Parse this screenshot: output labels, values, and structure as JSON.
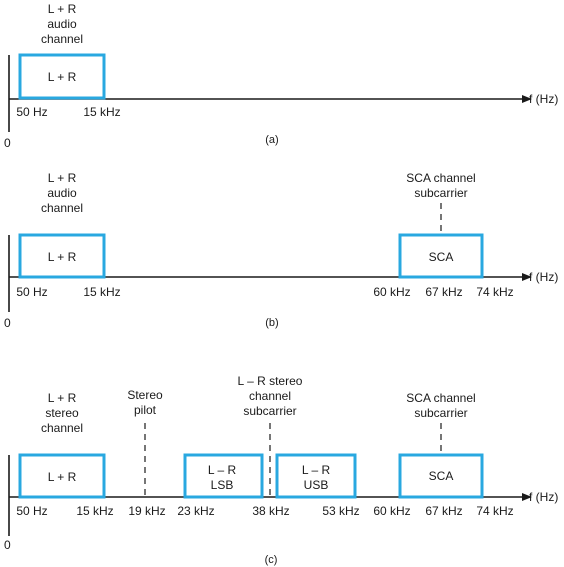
{
  "axis_label": "f (Hz)",
  "origin_label": "0",
  "panels": [
    {
      "caption": "(a)",
      "bands": [
        {
          "label": "L + R",
          "lines": [
            "L + R"
          ],
          "heading": [
            "L + R",
            "audio",
            "channel"
          ]
        }
      ],
      "ticks": [
        "50 Hz",
        "15 kHz"
      ]
    },
    {
      "caption": "(b)",
      "bands": [
        {
          "label": "L + R",
          "lines": [
            "L + R"
          ],
          "heading": [
            "L + R",
            "audio",
            "channel"
          ]
        },
        {
          "label": "SCA",
          "lines": [
            "SCA"
          ],
          "heading": [
            "SCA channel",
            "subcarrier"
          ]
        }
      ],
      "ticks": [
        "50 Hz",
        "15 kHz",
        "60 kHz",
        "67 kHz",
        "74 kHz"
      ]
    },
    {
      "caption": "(c)",
      "bands": [
        {
          "label": "L + R",
          "lines": [
            "L + R"
          ],
          "heading": [
            "L + R",
            "stereo",
            "channel"
          ]
        },
        {
          "label": "L – R LSB",
          "lines": [
            "L – R",
            "LSB"
          ]
        },
        {
          "label": "L – R USB",
          "lines": [
            "L – R",
            "USB"
          ]
        },
        {
          "label": "SCA",
          "lines": [
            "SCA"
          ],
          "heading": [
            "SCA channel",
            "subcarrier"
          ]
        }
      ],
      "markers": [
        {
          "heading": [
            "Stereo",
            "pilot"
          ]
        },
        {
          "heading": [
            "L – R stereo",
            "channel",
            "subcarrier"
          ]
        }
      ],
      "ticks": [
        "50 Hz",
        "15 kHz",
        "19 kHz",
        "23 kHz",
        "38 kHz",
        "53 kHz",
        "60 kHz",
        "67 kHz",
        "74 kHz"
      ]
    }
  ]
}
